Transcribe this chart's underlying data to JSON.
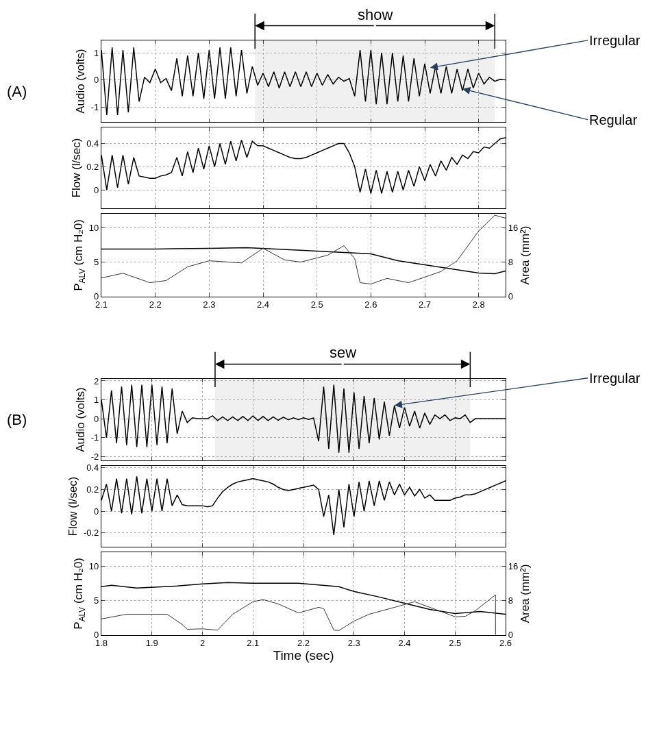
{
  "chart_data": [
    {
      "type": "line",
      "ylabel": "Audio (volts)",
      "xlim": [
        2.1,
        2.85
      ],
      "xticks": [
        2.1,
        2.2,
        2.3,
        2.4,
        2.5,
        2.6,
        2.7,
        2.8
      ],
      "ylim": [
        -1.55,
        1.45
      ],
      "yticks": [
        -1,
        0,
        1
      ],
      "grid": true,
      "tick_labels": "y",
      "annotations": [
        "(A)",
        {
          "text": "Irregular",
          "x": 2.71,
          "y": 0.45
        },
        {
          "text": "Regular",
          "x": 2.77,
          "y": -0.33
        }
      ],
      "bands": [
        {
          "axis": "x",
          "from": 2.385,
          "to": 2.83,
          "label": "show"
        }
      ],
      "ref_lines": [
        {
          "axis": "x",
          "value": 2.385
        },
        {
          "axis": "x",
          "value": 2.83
        }
      ],
      "x": [
        2.1,
        2.11,
        2.12,
        2.13,
        2.14,
        2.15,
        2.16,
        2.17,
        2.18,
        2.19,
        2.2,
        2.21,
        2.22,
        2.23,
        2.24,
        2.25,
        2.26,
        2.27,
        2.28,
        2.29,
        2.3,
        2.31,
        2.32,
        2.33,
        2.34,
        2.35,
        2.36,
        2.37,
        2.38,
        2.39,
        2.4,
        2.41,
        2.42,
        2.43,
        2.44,
        2.45,
        2.46,
        2.47,
        2.48,
        2.49,
        2.5,
        2.51,
        2.52,
        2.53,
        2.54,
        2.55,
        2.56,
        2.57,
        2.58,
        2.59,
        2.6,
        2.61,
        2.62,
        2.63,
        2.64,
        2.65,
        2.66,
        2.67,
        2.68,
        2.69,
        2.7,
        2.71,
        2.72,
        2.73,
        2.74,
        2.75,
        2.76,
        2.77,
        2.78,
        2.79,
        2.8,
        2.81,
        2.82,
        2.83,
        2.84,
        2.85
      ],
      "series": [
        {
          "color": "#000000",
          "values": [
            1.1,
            -1.3,
            1.2,
            -1.3,
            1.1,
            -1.2,
            1.2,
            -0.8,
            0.1,
            -0.1,
            0.4,
            -0.1,
            0.05,
            -0.4,
            0.8,
            -0.6,
            0.9,
            -0.6,
            1.0,
            -0.7,
            1.1,
            -0.7,
            1.2,
            -0.7,
            1.2,
            -0.6,
            1.1,
            -0.5,
            0.5,
            -0.2,
            0.25,
            -0.25,
            0.3,
            -0.3,
            0.3,
            -0.25,
            0.3,
            -0.25,
            0.3,
            -0.25,
            0.25,
            -0.2,
            0.2,
            -0.15,
            0.1,
            -0.05,
            0.05,
            -0.6,
            1.1,
            -0.8,
            1.1,
            -0.9,
            1.0,
            -0.9,
            1.0,
            -0.8,
            0.9,
            -0.8,
            0.8,
            -0.6,
            0.6,
            -0.5,
            0.5,
            -0.5,
            0.5,
            -0.5,
            0.4,
            -0.4,
            0.4,
            -0.3,
            0.25,
            -0.15,
            0.1,
            -0.05,
            0.02,
            0.0
          ]
        }
      ]
    },
    {
      "type": "line",
      "ylabel": "Flow (l/sec)",
      "xlim": [
        2.1,
        2.85
      ],
      "xticks": [
        2.1,
        2.2,
        2.3,
        2.4,
        2.5,
        2.6,
        2.7,
        2.8
      ],
      "ylim": [
        -0.16,
        0.54
      ],
      "yticks": [
        0,
        0.2,
        0.4
      ],
      "grid": true,
      "tick_labels": "y",
      "x": [
        2.1,
        2.11,
        2.12,
        2.13,
        2.14,
        2.15,
        2.16,
        2.17,
        2.18,
        2.19,
        2.2,
        2.21,
        2.22,
        2.23,
        2.24,
        2.25,
        2.26,
        2.27,
        2.28,
        2.29,
        2.3,
        2.31,
        2.32,
        2.33,
        2.34,
        2.35,
        2.36,
        2.37,
        2.38,
        2.39,
        2.4,
        2.41,
        2.42,
        2.43,
        2.44,
        2.45,
        2.46,
        2.47,
        2.48,
        2.49,
        2.5,
        2.51,
        2.52,
        2.53,
        2.54,
        2.55,
        2.56,
        2.57,
        2.58,
        2.59,
        2.6,
        2.61,
        2.62,
        2.63,
        2.64,
        2.65,
        2.66,
        2.67,
        2.68,
        2.69,
        2.7,
        2.71,
        2.72,
        2.73,
        2.74,
        2.75,
        2.76,
        2.77,
        2.78,
        2.79,
        2.8,
        2.81,
        2.82,
        2.83,
        2.84,
        2.85
      ],
      "series": [
        {
          "color": "#000000",
          "values": [
            0.3,
            0.0,
            0.3,
            0.02,
            0.3,
            0.05,
            0.28,
            0.12,
            0.11,
            0.1,
            0.1,
            0.12,
            0.13,
            0.15,
            0.28,
            0.12,
            0.33,
            0.15,
            0.36,
            0.18,
            0.38,
            0.2,
            0.4,
            0.22,
            0.42,
            0.25,
            0.43,
            0.28,
            0.42,
            0.38,
            0.38,
            0.36,
            0.34,
            0.32,
            0.3,
            0.28,
            0.27,
            0.27,
            0.28,
            0.3,
            0.32,
            0.34,
            0.36,
            0.38,
            0.4,
            0.4,
            0.32,
            0.2,
            -0.02,
            0.18,
            -0.03,
            0.17,
            -0.03,
            0.16,
            -0.02,
            0.16,
            0.0,
            0.17,
            0.03,
            0.2,
            0.08,
            0.22,
            0.12,
            0.25,
            0.17,
            0.28,
            0.22,
            0.3,
            0.27,
            0.33,
            0.32,
            0.37,
            0.36,
            0.4,
            0.44,
            0.45
          ]
        }
      ]
    },
    {
      "type": "line",
      "ylabel": "P$_{ALV}$ (cm H₂0)",
      "y2label": "Area (mm²)",
      "xlim": [
        2.1,
        2.85
      ],
      "xticks": [
        2.1,
        2.2,
        2.3,
        2.4,
        2.5,
        2.6,
        2.7,
        2.8
      ],
      "ylim": [
        0,
        12
      ],
      "yticks": [
        0,
        5,
        10
      ],
      "y2lim": [
        0,
        19.2
      ],
      "y2ticks": [
        0,
        8,
        16
      ],
      "grid": true,
      "series": [
        {
          "color": "#000000",
          "x": [
            2.1,
            2.2,
            2.3,
            2.37,
            2.45,
            2.55,
            2.6,
            2.65,
            2.7,
            2.75,
            2.8,
            2.83,
            2.85
          ],
          "values": [
            6.9,
            6.9,
            7.0,
            7.1,
            6.8,
            6.4,
            6.2,
            5.2,
            4.6,
            4.0,
            3.4,
            3.3,
            3.7
          ]
        },
        {
          "color": "#333333",
          "axis": "y2",
          "x": [
            2.1,
            2.14,
            2.19,
            2.22,
            2.26,
            2.3,
            2.36,
            2.4,
            2.44,
            2.47,
            2.52,
            2.55,
            2.57,
            2.58,
            2.6,
            2.63,
            2.67,
            2.7,
            2.73,
            2.76,
            2.8,
            2.83,
            2.85
          ],
          "values": [
            4.3,
            5.4,
            3.2,
            3.7,
            6.9,
            8.3,
            7.8,
            11.2,
            8.5,
            8.0,
            9.6,
            11.8,
            8.8,
            3.2,
            2.9,
            4.2,
            3.2,
            4.5,
            5.8,
            8.3,
            15.2,
            18.9,
            18.2
          ]
        }
      ]
    },
    {
      "type": "line",
      "ylabel": "Audio (volts)",
      "xlim": [
        1.8,
        2.6
      ],
      "xticks": [
        1.8,
        1.9,
        2,
        2.1,
        2.2,
        2.3,
        2.4,
        2.5,
        2.6
      ],
      "ylim": [
        -2.2,
        2.1
      ],
      "yticks": [
        -2,
        -1,
        0,
        1,
        2
      ],
      "grid": true,
      "tick_labels": "y",
      "annotations": [
        "(B)",
        {
          "text": "Irregular",
          "x": 2.38,
          "y": 0.7
        }
      ],
      "bands": [
        {
          "axis": "x",
          "from": 2.025,
          "to": 2.53,
          "label": "sew"
        }
      ],
      "ref_lines": [
        {
          "axis": "x",
          "value": 2.025
        },
        {
          "axis": "x",
          "value": 2.53
        }
      ],
      "x": [
        1.8,
        1.81,
        1.82,
        1.83,
        1.84,
        1.85,
        1.86,
        1.87,
        1.88,
        1.89,
        1.9,
        1.91,
        1.92,
        1.93,
        1.94,
        1.95,
        1.96,
        1.97,
        1.98,
        1.99,
        2.0,
        2.01,
        2.02,
        2.03,
        2.04,
        2.05,
        2.06,
        2.07,
        2.08,
        2.09,
        2.1,
        2.11,
        2.12,
        2.13,
        2.14,
        2.15,
        2.16,
        2.17,
        2.18,
        2.19,
        2.2,
        2.21,
        2.22,
        2.23,
        2.24,
        2.25,
        2.26,
        2.27,
        2.28,
        2.29,
        2.3,
        2.31,
        2.32,
        2.33,
        2.34,
        2.35,
        2.36,
        2.37,
        2.38,
        2.39,
        2.4,
        2.41,
        2.42,
        2.43,
        2.44,
        2.45,
        2.46,
        2.47,
        2.48,
        2.49,
        2.5,
        2.51,
        2.52,
        2.53,
        2.54,
        2.55,
        2.56,
        2.57,
        2.58,
        2.59,
        2.6
      ],
      "series": [
        {
          "color": "#000000",
          "values": [
            1.0,
            -1.0,
            1.5,
            -1.3,
            1.7,
            -1.4,
            1.8,
            -1.5,
            1.8,
            -1.5,
            1.8,
            -1.4,
            1.7,
            -1.3,
            1.6,
            -0.8,
            0.4,
            -0.2,
            0.05,
            0.0,
            0.0,
            0.0,
            0.15,
            -0.1,
            0.1,
            -0.1,
            0.1,
            -0.1,
            0.12,
            -0.1,
            0.15,
            -0.1,
            0.12,
            -0.1,
            0.1,
            -0.08,
            0.08,
            -0.06,
            0.05,
            -0.05,
            0.05,
            -0.04,
            0.04,
            -1.2,
            1.7,
            -1.6,
            1.8,
            -1.8,
            1.6,
            -1.8,
            1.4,
            -1.6,
            1.2,
            -1.3,
            1.1,
            -1.1,
            0.9,
            -0.9,
            0.7,
            -0.5,
            0.6,
            -0.4,
            0.4,
            -0.5,
            0.3,
            -0.3,
            0.2,
            0.0,
            0.2,
            -0.1,
            0.05,
            0.0,
            0.2,
            -0.2,
            0.0,
            0.0,
            0.0,
            0.0,
            0.0,
            0.0,
            0.0
          ]
        }
      ]
    },
    {
      "type": "line",
      "ylabel": "Flow (l/sec)",
      "xlim": [
        1.8,
        2.6
      ],
      "xticks": [
        1.8,
        1.9,
        2,
        2.1,
        2.2,
        2.3,
        2.4,
        2.5,
        2.6
      ],
      "ylim": [
        -0.33,
        0.42
      ],
      "yticks": [
        -0.2,
        0,
        0.2,
        0.4
      ],
      "grid": true,
      "tick_labels": "y",
      "x": [
        1.8,
        1.81,
        1.82,
        1.83,
        1.84,
        1.85,
        1.86,
        1.87,
        1.88,
        1.89,
        1.9,
        1.91,
        1.92,
        1.93,
        1.94,
        1.95,
        1.96,
        1.97,
        1.98,
        1.99,
        2.0,
        2.01,
        2.02,
        2.03,
        2.04,
        2.05,
        2.06,
        2.07,
        2.08,
        2.09,
        2.1,
        2.11,
        2.12,
        2.13,
        2.14,
        2.15,
        2.16,
        2.17,
        2.18,
        2.19,
        2.2,
        2.21,
        2.22,
        2.23,
        2.24,
        2.25,
        2.26,
        2.27,
        2.28,
        2.29,
        2.3,
        2.31,
        2.32,
        2.33,
        2.34,
        2.35,
        2.36,
        2.37,
        2.38,
        2.39,
        2.4,
        2.41,
        2.42,
        2.43,
        2.44,
        2.45,
        2.46,
        2.47,
        2.48,
        2.49,
        2.5,
        2.51,
        2.52,
        2.53,
        2.54,
        2.55,
        2.56,
        2.57,
        2.58,
        2.59,
        2.6
      ],
      "series": [
        {
          "color": "#000000",
          "values": [
            0.1,
            0.25,
            0.0,
            0.3,
            -0.02,
            0.3,
            -0.03,
            0.32,
            -0.02,
            0.3,
            0.0,
            0.3,
            0.0,
            0.3,
            0.05,
            0.15,
            0.06,
            0.05,
            0.05,
            0.05,
            0.05,
            0.04,
            0.05,
            0.12,
            0.18,
            0.22,
            0.25,
            0.27,
            0.28,
            0.29,
            0.3,
            0.29,
            0.28,
            0.27,
            0.25,
            0.22,
            0.2,
            0.19,
            0.2,
            0.21,
            0.22,
            0.23,
            0.24,
            0.2,
            -0.05,
            0.15,
            -0.22,
            0.2,
            -0.15,
            0.25,
            -0.05,
            0.27,
            0.0,
            0.28,
            0.05,
            0.28,
            0.1,
            0.27,
            0.15,
            0.25,
            0.15,
            0.22,
            0.14,
            0.2,
            0.12,
            0.15,
            0.1,
            0.1,
            0.1,
            0.1,
            0.12,
            0.13,
            0.15,
            0.15,
            0.16,
            0.18,
            0.2,
            0.22,
            0.24,
            0.26,
            0.28
          ]
        }
      ]
    },
    {
      "type": "line",
      "ylabel": "P$_{ALV}$ (cm H₂0)",
      "y2label": "Area (mm²)",
      "xlabel": "Time (sec)",
      "xlim": [
        1.8,
        2.6
      ],
      "xticks": [
        1.8,
        1.9,
        2,
        2.1,
        2.2,
        2.3,
        2.4,
        2.5,
        2.6
      ],
      "ylim": [
        0,
        12
      ],
      "yticks": [
        0,
        5,
        10
      ],
      "y2lim": [
        0,
        19.2
      ],
      "y2ticks": [
        0,
        8,
        16
      ],
      "grid": true,
      "series": [
        {
          "color": "#000000",
          "x": [
            1.8,
            1.82,
            1.87,
            1.95,
            2.0,
            2.05,
            2.1,
            2.19,
            2.27,
            2.3,
            2.35,
            2.4,
            2.45,
            2.5,
            2.55,
            2.6
          ],
          "values": [
            7.0,
            7.2,
            6.8,
            7.1,
            7.4,
            7.6,
            7.5,
            7.5,
            7.0,
            6.3,
            5.5,
            4.6,
            3.7,
            3.1,
            3.4,
            3.0
          ]
        },
        {
          "color": "#333333",
          "axis": "y2",
          "x": [
            1.8,
            1.85,
            1.93,
            1.96,
            1.97,
            2.0,
            2.03,
            2.06,
            2.1,
            2.12,
            2.15,
            2.19,
            2.23,
            2.24,
            2.26,
            2.27,
            2.3,
            2.33,
            2.38,
            2.42,
            2.45,
            2.48,
            2.5,
            2.52,
            2.54,
            2.58,
            2.5801
          ],
          "values": [
            3.7,
            4.8,
            4.8,
            2.4,
            1.3,
            1.4,
            1.1,
            4.8,
            7.7,
            8.2,
            7.2,
            5.1,
            6.4,
            6.1,
            1.1,
            1.0,
            3.2,
            4.8,
            6.4,
            7.7,
            6.4,
            5.1,
            4.2,
            4.3,
            5.6,
            9.3,
            0
          ]
        }
      ]
    }
  ]
}
